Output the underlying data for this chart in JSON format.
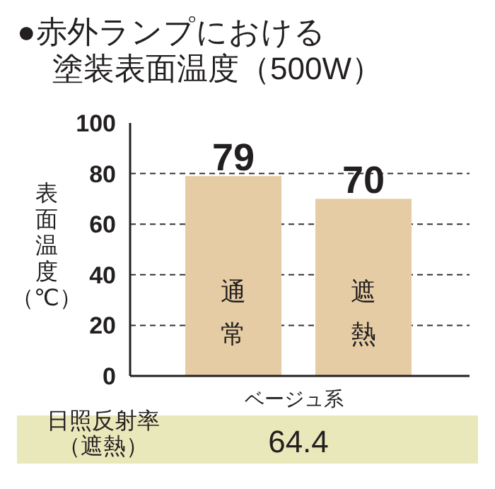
{
  "chart_data": {
    "type": "bar",
    "title": "●赤外ランプにおける塗装表面温度（500W）",
    "xlabel": "ベージュ系",
    "ylabel": "表面温度（℃）",
    "categories": [
      "通常",
      "遮熱"
    ],
    "values": [
      79,
      70
    ],
    "color": "#e5cca4",
    "data_labels": true,
    "ylim": [
      0,
      100
    ],
    "yticks": [
      0,
      20,
      40,
      60,
      80,
      100
    ],
    "grid": "y",
    "line_style": "dashed",
    "annotations": [
      "日照反射率（遮熱）",
      "64.4"
    ]
  }
}
